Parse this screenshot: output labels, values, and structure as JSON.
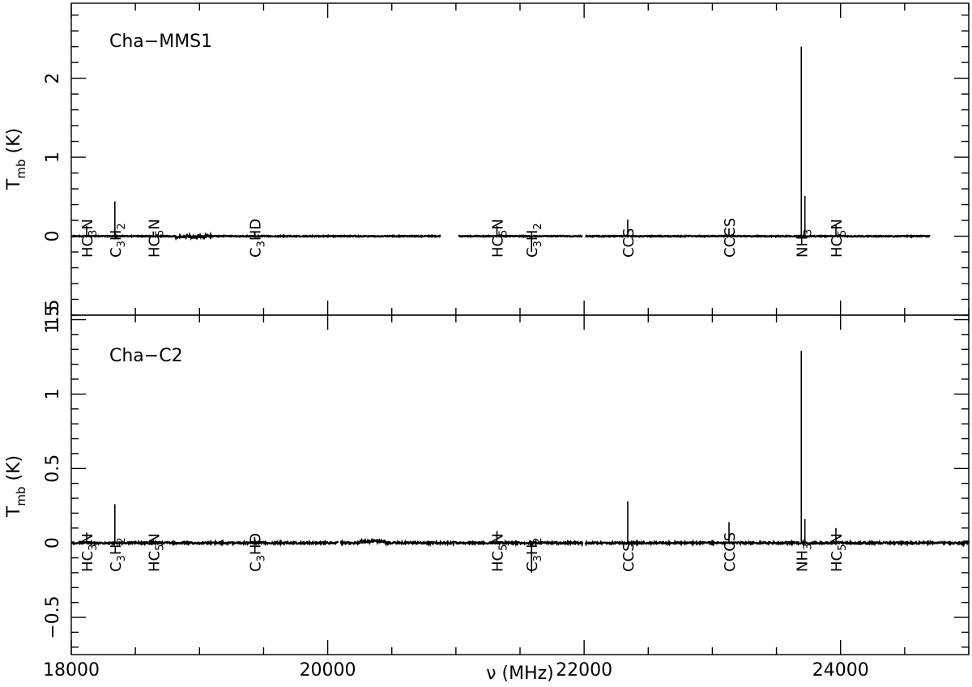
{
  "chart_data": [
    {
      "type": "line",
      "title": "Cha−MMS1",
      "xlabel": "",
      "ylabel": "T_mb (K)",
      "ylabel_main": "T",
      "ylabel_sub": "mb",
      "ylabel_rest": " (K)",
      "xlim": [
        18000,
        25000
      ],
      "ylim": [
        -1.0,
        2.95
      ],
      "yticks": [
        0,
        1,
        2
      ],
      "ytick_labels": [
        "0",
        "1",
        "2"
      ],
      "extra_ytick_label": "1.5",
      "grid": false,
      "baseline_segments": [
        [
          18000,
          18870
        ],
        [
          18870,
          19200
        ],
        [
          19200,
          20880
        ],
        [
          21020,
          21990
        ],
        [
          22010,
          24700
        ]
      ],
      "series": [
        {
          "values": [
            {
              "x": 18120,
              "y": 0.13
            },
            {
              "x": 18340,
              "y": 0.44
            },
            {
              "x": 18640,
              "y": 0.06
            },
            {
              "x": 19430,
              "y": 0.05
            },
            {
              "x": 21320,
              "y": 0.13
            },
            {
              "x": 21590,
              "y": -0.2
            },
            {
              "x": 22340,
              "y": 0.21
            },
            {
              "x": 23130,
              "y": 0.1
            },
            {
              "x": 23694,
              "y": 2.4
            },
            {
              "x": 23722,
              "y": 0.51
            },
            {
              "x": 23964,
              "y": 0.14
            }
          ]
        }
      ],
      "line_labels": [
        {
          "x": 18120,
          "main": "HC",
          "sub": "3",
          "tail": "N"
        },
        {
          "x": 18340,
          "main": "C",
          "sub": "3",
          "tail": "H",
          "sub2": "2"
        },
        {
          "x": 18640,
          "main": "HC",
          "sub": "5",
          "tail": "N"
        },
        {
          "x": 19430,
          "main": "C",
          "sub": "3",
          "tail": "HD"
        },
        {
          "x": 21320,
          "main": "HC",
          "sub": "5",
          "tail": "N"
        },
        {
          "x": 21590,
          "main": "C",
          "sub": "3",
          "tail": "H",
          "sub2": "2"
        },
        {
          "x": 22340,
          "main": "CCS"
        },
        {
          "x": 23130,
          "main": "CCCS"
        },
        {
          "x": 23694,
          "main": "NH",
          "sub": "3"
        },
        {
          "x": 23964,
          "main": "HC",
          "sub": "5",
          "tail": "N"
        }
      ]
    },
    {
      "type": "line",
      "title": "Cha−C2",
      "xlabel": "ν (MHz)",
      "ylabel": "T_mb (K)",
      "ylabel_main": "T",
      "ylabel_sub": "mb",
      "ylabel_rest": " (K)",
      "xlim": [
        18000,
        25000
      ],
      "ylim": [
        -0.75,
        1.53
      ],
      "xticks": [
        18000,
        20000,
        22000,
        24000
      ],
      "xtick_labels": [
        "18000",
        "20000",
        "22000",
        "24000"
      ],
      "yticks": [
        -0.5,
        0,
        0.5,
        1,
        1.5
      ],
      "ytick_labels": [
        "−0.5",
        "0",
        "0.5",
        "1",
        "1.5"
      ],
      "grid": false,
      "baseline_segments": [
        [
          18000,
          19300
        ],
        [
          19300,
          20000
        ],
        [
          20000,
          20080
        ],
        [
          20100,
          20300
        ],
        [
          20300,
          21990
        ],
        [
          22010,
          24000
        ],
        [
          24000,
          25000
        ]
      ],
      "series": [
        {
          "values": [
            {
              "x": 18120,
              "y": 0.07
            },
            {
              "x": 18340,
              "y": 0.26
            },
            {
              "x": 18640,
              "y": 0.03
            },
            {
              "x": 19430,
              "y": 0.04
            },
            {
              "x": 21320,
              "y": 0.08
            },
            {
              "x": 21590,
              "y": -0.2
            },
            {
              "x": 22340,
              "y": 0.28
            },
            {
              "x": 23130,
              "y": 0.14
            },
            {
              "x": 23694,
              "y": 1.29
            },
            {
              "x": 23722,
              "y": 0.16
            },
            {
              "x": 23964,
              "y": 0.1
            }
          ]
        }
      ],
      "line_labels": [
        {
          "x": 18120,
          "main": "HC",
          "sub": "3",
          "tail": "N"
        },
        {
          "x": 18340,
          "main": "C",
          "sub": "3",
          "tail": "H",
          "sub2": "2"
        },
        {
          "x": 18640,
          "main": "HC",
          "sub": "5",
          "tail": "N"
        },
        {
          "x": 19430,
          "main": "C",
          "sub": "3",
          "tail": "HD"
        },
        {
          "x": 21320,
          "main": "HC",
          "sub": "5",
          "tail": "N"
        },
        {
          "x": 21590,
          "main": "C",
          "sub": "3",
          "tail": "H",
          "sub2": "2"
        },
        {
          "x": 22340,
          "main": "CCS"
        },
        {
          "x": 23130,
          "main": "CCCS"
        },
        {
          "x": 23694,
          "main": "NH",
          "sub": "3"
        },
        {
          "x": 23964,
          "main": "HC",
          "sub": "5",
          "tail": "N"
        }
      ]
    }
  ]
}
